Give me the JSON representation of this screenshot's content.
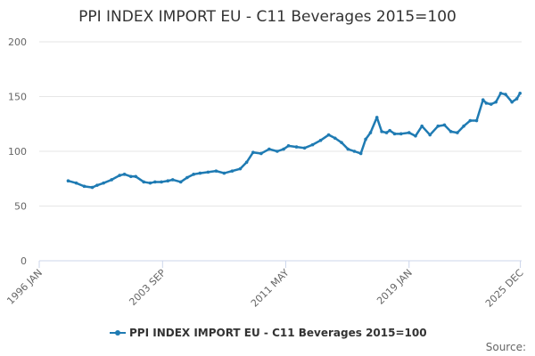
{
  "chart_data": {
    "type": "line",
    "title": "PPI INDEX IMPORT EU - C11 Beverages 2015=100",
    "ylim": [
      0,
      200
    ],
    "yticks": [
      0,
      50,
      100,
      150,
      200
    ],
    "xlim": [
      1996.0,
      2026.0
    ],
    "xtick_labels": [
      "1996 JAN",
      "2003 SEP",
      "2011 MAY",
      "2019 JAN",
      "2025 DEC"
    ],
    "xtick_positions": [
      1996.0,
      2003.67,
      2011.33,
      2019.0,
      2025.92
    ],
    "legend": "top-bottom-center",
    "series": [
      {
        "name": "PPI INDEX IMPORT EU - C11 Beverages 2015=100",
        "color": "#1f7bb3",
        "x": [
          1997.8,
          1998.3,
          1998.8,
          1999.3,
          1999.6,
          2000.0,
          2000.5,
          2001.0,
          2001.3,
          2001.7,
          2002.0,
          2002.5,
          2002.9,
          2003.2,
          2003.6,
          2004.0,
          2004.3,
          2004.8,
          2005.2,
          2005.6,
          2006.0,
          2006.5,
          2007.0,
          2007.5,
          2008.0,
          2008.5,
          2008.9,
          2009.3,
          2009.8,
          2010.3,
          2010.8,
          2011.2,
          2011.5,
          2012.0,
          2012.5,
          2013.0,
          2013.5,
          2014.0,
          2014.4,
          2014.8,
          2015.2,
          2015.6,
          2016.0,
          2016.3,
          2016.6,
          2017.0,
          2017.3,
          2017.6,
          2017.8,
          2018.1,
          2018.5,
          2019.0,
          2019.4,
          2019.8,
          2020.3,
          2020.8,
          2021.2,
          2021.6,
          2022.0,
          2022.4,
          2022.8,
          2023.2,
          2023.6,
          2023.8,
          2024.1,
          2024.4,
          2024.7,
          2025.0,
          2025.4,
          2025.7,
          2025.9
        ],
        "values": [
          73,
          71,
          68,
          67,
          69,
          71,
          74,
          78,
          79,
          77,
          77,
          72,
          71,
          72,
          72,
          73,
          74,
          72,
          76,
          79,
          80,
          81,
          82,
          80,
          82,
          84,
          90,
          99,
          98,
          102,
          100,
          102,
          105,
          104,
          103,
          106,
          110,
          115,
          112,
          108,
          102,
          100,
          98,
          111,
          117,
          131,
          118,
          117,
          119,
          116,
          116,
          117,
          114,
          123,
          115,
          123,
          124,
          118,
          117,
          123,
          128,
          128,
          147,
          144,
          143,
          145,
          153,
          152,
          145,
          148,
          153
        ]
      }
    ]
  },
  "source_label": "Source:"
}
